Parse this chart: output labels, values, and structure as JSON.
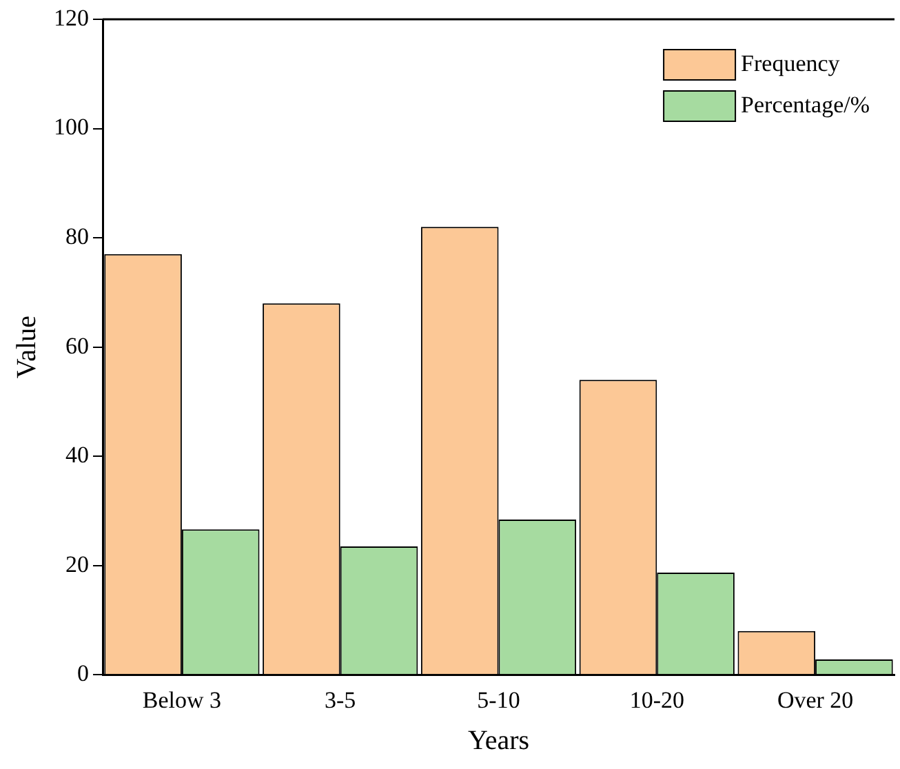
{
  "chart_data": {
    "type": "bar",
    "xlabel": "Years",
    "ylabel": "Value",
    "categories": [
      "Below 3",
      "3-5",
      "5-10",
      "10-20",
      "Over 20"
    ],
    "series": [
      {
        "name": "Frequency",
        "color": "#fcc896",
        "values": [
          77,
          68,
          82,
          54,
          8
        ]
      },
      {
        "name": "Percentage/%",
        "color": "#a6dba0",
        "values": [
          26.6,
          23.5,
          28.4,
          18.7,
          2.8
        ]
      }
    ],
    "ylim": [
      0,
      120
    ],
    "yticks": [
      0,
      20,
      40,
      60,
      80,
      100,
      120
    ],
    "grid": false,
    "legend": "top right"
  }
}
